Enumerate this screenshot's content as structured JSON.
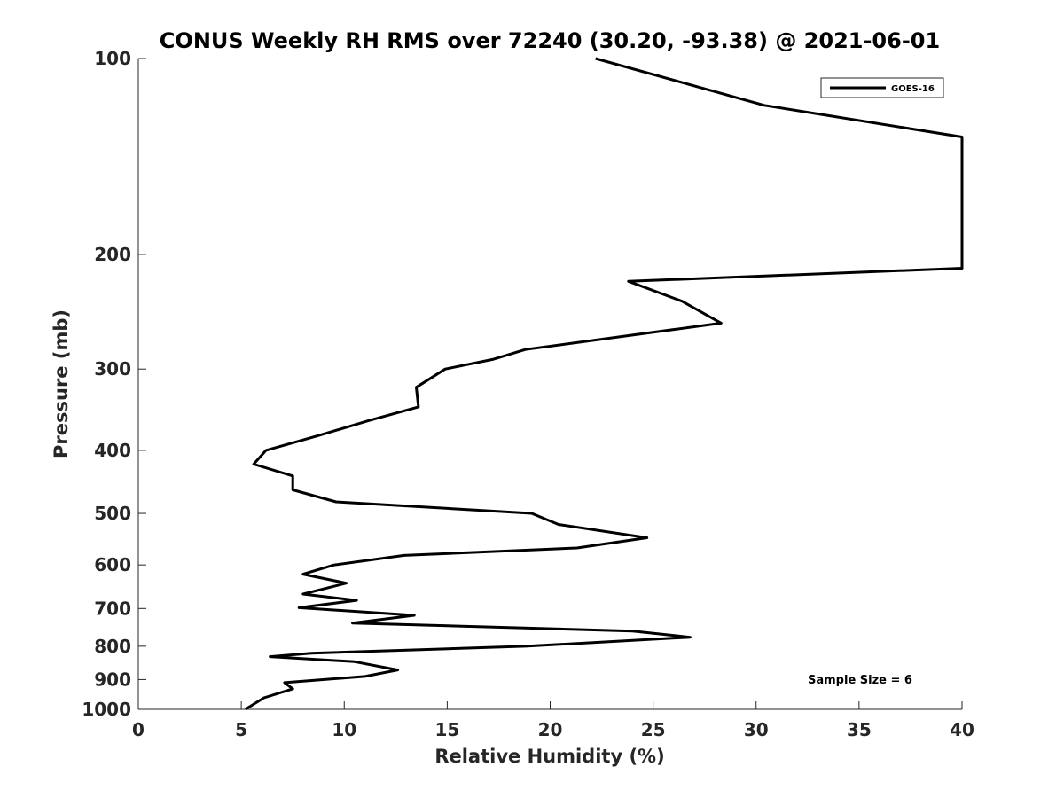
{
  "chart_data": {
    "type": "line",
    "title": "CONUS Weekly RH RMS over 72240 (30.20, -93.38) @ 2021-06-01",
    "xlabel": "Relative Humidity (%)",
    "ylabel": "Pressure (mb)",
    "xlim": [
      0,
      40
    ],
    "ylim": [
      100,
      1000
    ],
    "y_scale": "log",
    "y_reversed": true,
    "grid": false,
    "legend_position": "top-right",
    "x_ticks": [
      "0",
      "5",
      "10",
      "15",
      "20",
      "25",
      "30",
      "35",
      "40"
    ],
    "y_ticks": [
      "100",
      "200",
      "300",
      "400",
      "500",
      "600",
      "700",
      "800",
      "900",
      "1000"
    ],
    "series": [
      {
        "name": "GOES-16",
        "color": "#000000",
        "x": [
          22.2,
          30.4,
          40,
          40,
          23.8,
          26.4,
          28.3,
          18.8,
          17.2,
          14.9,
          13.5,
          13.6,
          11.2,
          8.7,
          6.2,
          5.6,
          7.5,
          7.5,
          9.6,
          19.1,
          20.4,
          24.7,
          21.3,
          12.9,
          9.5,
          8.0,
          10.1,
          8.0,
          10.6,
          7.8,
          13.4,
          10.4,
          24.0,
          26.8,
          18.8,
          8.4,
          6.4,
          10.5,
          12.6,
          11.0,
          7.1,
          7.5,
          6.1,
          5.2
        ],
        "y": [
          100,
          118,
          132,
          210,
          220,
          236,
          255,
          280,
          290,
          300,
          320,
          343,
          360,
          380,
          400,
          420,
          438,
          460,
          480,
          500,
          520,
          545,
          565,
          580,
          600,
          620,
          640,
          665,
          680,
          698,
          717,
          737,
          758,
          775,
          800,
          820,
          830,
          845,
          870,
          890,
          910,
          930,
          960,
          1000
        ]
      }
    ],
    "annotations": [
      "Sample Size = 6"
    ]
  }
}
